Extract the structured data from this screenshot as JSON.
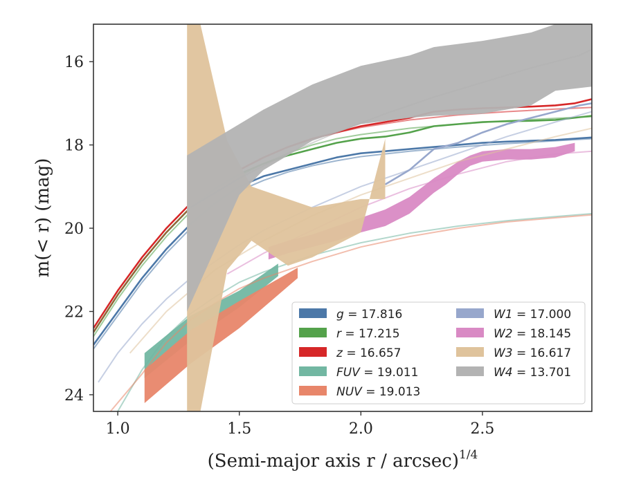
{
  "chart_data": {
    "type": "line",
    "xlabel": "(Semi-major axis r / arcsec)",
    "xlabel_sup": "1/4",
    "ylabel": "m(< r) (mag)",
    "xlim": [
      0.9,
      2.95
    ],
    "ylim": [
      24.4,
      15.1
    ],
    "y_inverted": true,
    "grid": false,
    "legend_placement": "lower-right",
    "x_ticks": [
      1.0,
      1.5,
      2.0,
      2.5
    ],
    "x_tick_labels": [
      "1.0",
      "1.5",
      "2.0",
      "2.5"
    ],
    "y_ticks": [
      16,
      18,
      20,
      22,
      24
    ],
    "y_tick_labels": [
      "16",
      "18",
      "20",
      "22",
      "24"
    ],
    "series": [
      {
        "name": "g = 17.816",
        "label_var": "g",
        "label_val": "17.816",
        "color": "#4c78a8",
        "data_x": [
          0.9,
          1.0,
          1.1,
          1.2,
          1.3,
          1.4,
          1.5,
          1.6,
          1.7,
          1.8,
          1.9,
          2.0,
          2.1,
          2.2,
          2.3,
          2.4,
          2.5,
          2.6,
          2.7,
          2.8,
          2.95
        ],
        "data_y": [
          22.8,
          22.0,
          21.2,
          20.5,
          19.9,
          19.4,
          19.0,
          18.75,
          18.6,
          18.45,
          18.3,
          18.2,
          18.15,
          18.1,
          18.05,
          18.0,
          17.95,
          17.92,
          17.9,
          17.88,
          17.82
        ],
        "model_x": [
          0.9,
          1.0,
          1.1,
          1.2,
          1.3,
          1.4,
          1.5,
          1.6,
          1.7,
          1.8,
          1.9,
          2.0,
          2.2,
          2.4,
          2.6,
          2.8,
          2.95
        ],
        "model_y": [
          22.9,
          22.1,
          21.3,
          20.6,
          20.0,
          19.5,
          19.1,
          18.85,
          18.65,
          18.5,
          18.38,
          18.28,
          18.15,
          18.05,
          17.97,
          17.9,
          17.85
        ]
      },
      {
        "name": "r = 17.215",
        "label_var": "r",
        "label_val": "17.215",
        "color": "#54a24b",
        "data_x": [
          0.9,
          1.0,
          1.1,
          1.2,
          1.3,
          1.4,
          1.5,
          1.6,
          1.7,
          1.8,
          1.9,
          2.0,
          2.1,
          2.2,
          2.3,
          2.4,
          2.5,
          2.6,
          2.7,
          2.8,
          2.95
        ],
        "data_y": [
          22.5,
          21.6,
          20.8,
          20.1,
          19.5,
          19.05,
          18.7,
          18.45,
          18.25,
          18.1,
          17.95,
          17.85,
          17.8,
          17.7,
          17.55,
          17.5,
          17.45,
          17.43,
          17.42,
          17.4,
          17.3
        ],
        "model_x": [
          0.9,
          1.0,
          1.1,
          1.2,
          1.3,
          1.4,
          1.5,
          1.6,
          1.7,
          1.8,
          1.9,
          2.0,
          2.2,
          2.4,
          2.6,
          2.8,
          2.95
        ],
        "model_y": [
          22.6,
          21.7,
          20.9,
          20.2,
          19.6,
          19.1,
          18.75,
          18.45,
          18.2,
          18.0,
          17.85,
          17.75,
          17.6,
          17.5,
          17.42,
          17.36,
          17.32
        ]
      },
      {
        "name": "z = 16.657",
        "label_var": "z",
        "label_val": "16.657",
        "color": "#d62728",
        "data_x": [
          0.9,
          1.0,
          1.1,
          1.2,
          1.3,
          1.4,
          1.5,
          1.6,
          1.7,
          1.8,
          1.9,
          2.0,
          2.1,
          2.2,
          2.3,
          2.4,
          2.5,
          2.6,
          2.7,
          2.8,
          2.88,
          2.95
        ],
        "data_y": [
          22.4,
          21.5,
          20.7,
          20.0,
          19.4,
          18.95,
          18.6,
          18.3,
          18.05,
          17.85,
          17.7,
          17.55,
          17.45,
          17.35,
          17.2,
          17.15,
          17.12,
          17.1,
          17.08,
          17.05,
          17.0,
          16.9
        ],
        "model_x": [
          0.9,
          1.0,
          1.1,
          1.2,
          1.3,
          1.4,
          1.5,
          1.6,
          1.7,
          1.8,
          1.9,
          2.0,
          2.2,
          2.4,
          2.6,
          2.8,
          2.95
        ],
        "model_y": [
          22.5,
          21.6,
          20.8,
          20.1,
          19.5,
          19.0,
          18.6,
          18.3,
          18.05,
          17.85,
          17.7,
          17.58,
          17.4,
          17.28,
          17.2,
          17.14,
          17.1
        ]
      },
      {
        "name": "FUV = 19.011",
        "label_var": "FUV",
        "label_val": "19.011",
        "color": "#72b7a2",
        "band_x": [
          1.11,
          1.3,
          1.5,
          1.66
        ],
        "band_lo": [
          23.0,
          22.1,
          21.5,
          20.85
        ],
        "band_hi": [
          23.6,
          22.7,
          21.9,
          21.15
        ],
        "model_x": [
          1.0,
          1.1,
          1.2,
          1.3,
          1.4,
          1.5,
          1.6,
          1.8,
          2.0,
          2.2,
          2.4,
          2.6,
          2.8,
          2.95
        ],
        "model_y": [
          24.4,
          23.4,
          22.6,
          22.05,
          21.65,
          21.3,
          21.05,
          20.65,
          20.35,
          20.12,
          19.95,
          19.82,
          19.72,
          19.65
        ]
      },
      {
        "name": "NUV = 19.013",
        "label_var": "NUV",
        "label_val": "19.013",
        "color": "#e8866a",
        "band_x": [
          1.11,
          1.3,
          1.5,
          1.74
        ],
        "band_lo": [
          23.4,
          22.45,
          21.75,
          20.95
        ],
        "band_hi": [
          24.2,
          23.25,
          22.4,
          21.2
        ],
        "model_x": [
          0.97,
          1.1,
          1.2,
          1.3,
          1.4,
          1.5,
          1.6,
          1.8,
          2.0,
          2.2,
          2.4,
          2.6,
          2.8,
          2.95
        ],
        "model_y": [
          24.4,
          23.5,
          22.75,
          22.2,
          21.8,
          21.45,
          21.2,
          20.8,
          20.45,
          20.2,
          20.0,
          19.85,
          19.75,
          19.68
        ]
      },
      {
        "name": "W1 = 17.000",
        "label_var": "W1",
        "label_val": "17.000",
        "color": "#97a7cc",
        "data_x": [
          2.1,
          2.2,
          2.3,
          2.4,
          2.5,
          2.6,
          2.7,
          2.8,
          2.9,
          2.95
        ],
        "data_y": [
          18.95,
          18.6,
          18.1,
          17.95,
          17.7,
          17.5,
          17.35,
          17.2,
          17.05,
          17.0
        ],
        "model_x": [
          0.92,
          1.0,
          1.1,
          1.2,
          1.3,
          1.4,
          1.5,
          1.6,
          1.8,
          2.0,
          2.2,
          2.4,
          2.6,
          2.8,
          2.95
        ],
        "model_y": [
          23.7,
          23.0,
          22.3,
          21.7,
          21.2,
          20.8,
          20.4,
          20.05,
          19.5,
          19.0,
          18.6,
          18.2,
          17.8,
          17.45,
          17.2
        ]
      },
      {
        "name": "W2 = 18.145",
        "label_var": "W2",
        "label_val": "18.145",
        "color": "#d98ac4",
        "band_x": [
          1.62,
          1.7,
          1.8,
          1.9,
          2.0,
          2.1,
          2.2,
          2.3,
          2.35,
          2.4,
          2.45,
          2.5,
          2.6,
          2.7,
          2.8,
          2.88
        ],
        "band_lo": [
          20.45,
          20.3,
          20.15,
          19.95,
          19.75,
          19.55,
          19.25,
          18.8,
          18.6,
          18.4,
          18.25,
          18.15,
          18.1,
          18.1,
          18.05,
          17.95
        ],
        "band_hi": [
          20.75,
          20.6,
          20.45,
          20.3,
          20.1,
          19.95,
          19.65,
          19.15,
          18.95,
          18.7,
          18.5,
          18.4,
          18.35,
          18.35,
          18.3,
          18.15
        ],
        "model_x": [
          1.45,
          1.6,
          1.8,
          2.0,
          2.2,
          2.4,
          2.6,
          2.8,
          2.95
        ],
        "model_y": [
          21.1,
          20.6,
          20.05,
          19.5,
          19.05,
          18.7,
          18.4,
          18.22,
          18.15
        ]
      },
      {
        "name": "W3 = 16.617",
        "label_var": "W3",
        "label_val": "16.617",
        "color": "#dfc39c",
        "band_x": [
          1.285,
          1.285,
          1.34,
          1.45,
          1.55,
          1.7,
          1.8,
          2.0,
          2.1
        ],
        "band_lo": [
          24.4,
          15.1,
          15.1,
          17.9,
          19.0,
          19.3,
          19.5,
          19.3,
          19.3
        ],
        "band_hi": [
          24.4,
          24.4,
          24.4,
          21.0,
          20.3,
          20.9,
          20.7,
          20.1,
          17.85
        ],
        "model_x": [
          1.05,
          1.2,
          1.4,
          1.6,
          1.8,
          2.0,
          2.2,
          2.4,
          2.6,
          2.8,
          2.95
        ],
        "model_y": [
          23.0,
          22.0,
          21.0,
          20.3,
          19.7,
          19.2,
          18.8,
          18.4,
          18.1,
          17.8,
          17.6
        ]
      },
      {
        "name": "W4 = 13.701",
        "label_var": "W4",
        "label_val": "13.701",
        "color": "#b3b3b3",
        "band_x": [
          1.285,
          1.5,
          1.6,
          1.8,
          2.0,
          2.2,
          2.3,
          2.5,
          2.7,
          2.8,
          2.95
        ],
        "band_lo": [
          18.25,
          17.5,
          17.15,
          16.55,
          16.1,
          15.85,
          15.65,
          15.5,
          15.3,
          15.1,
          15.1
        ],
        "band_hi": [
          22.0,
          19.2,
          18.6,
          17.9,
          17.5,
          17.35,
          17.3,
          17.25,
          17.05,
          16.7,
          16.6
        ],
        "model_x": [
          1.3,
          1.5,
          1.7,
          1.9,
          2.1,
          2.3,
          2.5,
          2.7,
          2.9,
          2.95
        ],
        "model_y": [
          19.5,
          18.8,
          18.2,
          17.7,
          17.25,
          16.85,
          16.5,
          16.15,
          15.85,
          15.7
        ]
      }
    ]
  }
}
